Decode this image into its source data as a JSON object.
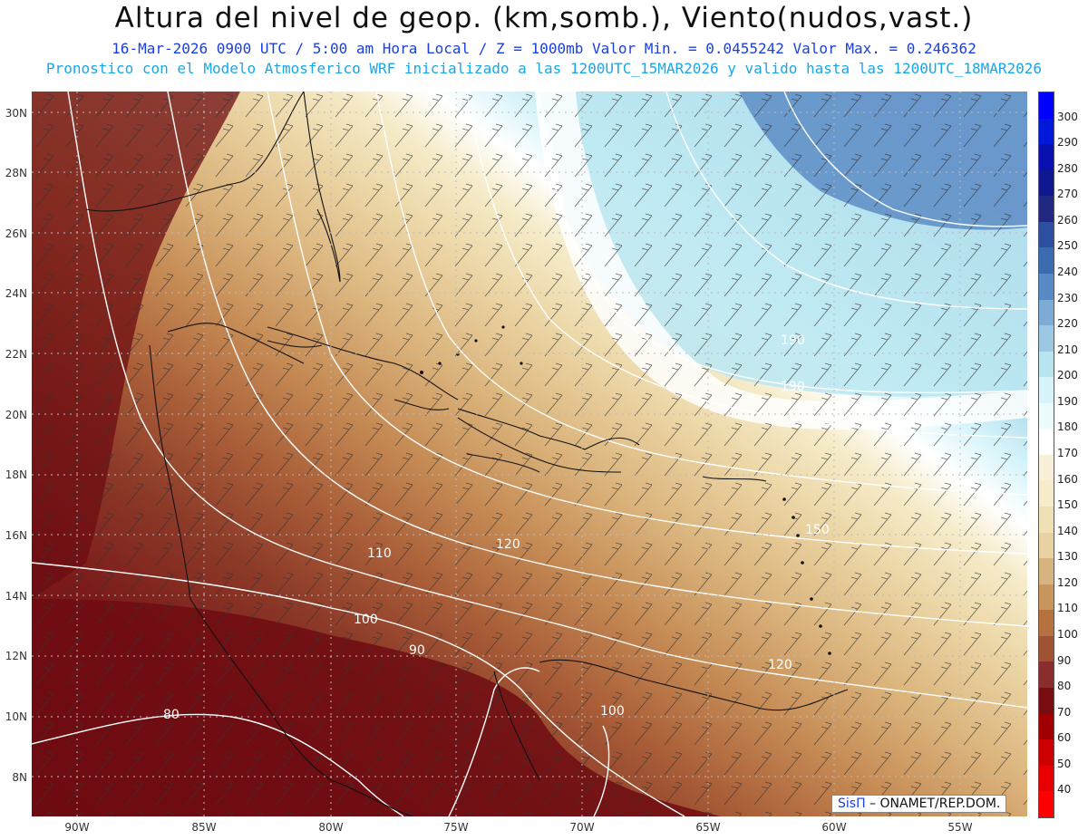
{
  "header": {
    "title": "Altura del nivel de geop. (km,somb.), Viento(nudos,vast.)",
    "subtitle1": "16-Mar-2026  0900 UTC / 5:00 am Hora Local / Z = 1000mb  Valor Min. = 0.0455242  Valor Max. = 0.246362",
    "subtitle2": "Pronostico con el Modelo Atmosferico WRF inicializado a las 1200UTC_15MAR2026 y valido hasta las  1200UTC_18MAR2026"
  },
  "map": {
    "lat_labels": [
      "30N",
      "28N",
      "26N",
      "24N",
      "22N",
      "20N",
      "18N",
      "16N",
      "14N",
      "12N",
      "10N",
      "8N"
    ],
    "lon_labels": [
      "90W",
      "85W",
      "80W",
      "75W",
      "70W",
      "65W",
      "60W",
      "55W"
    ],
    "contour_labels": [
      "80",
      "90",
      "100",
      "110",
      "120",
      "100",
      "120",
      "150",
      "190",
      "190"
    ],
    "gridline_color": "#bbbbbb",
    "land_outline_color": "#111111",
    "contour_color": "#ffffff",
    "wind_barb_color": "#333333"
  },
  "colorbar": {
    "labels": [
      "300",
      "290",
      "280",
      "270",
      "260",
      "250",
      "240",
      "230",
      "220",
      "210",
      "200",
      "190",
      "180",
      "170",
      "160",
      "150",
      "140",
      "130",
      "120",
      "110",
      "100",
      "90",
      "80",
      "70",
      "60",
      "50",
      "40"
    ],
    "colors": [
      "#0000ff",
      "#0018d8",
      "#0810b0",
      "#101890",
      "#202880",
      "#2c4fa0",
      "#3b6cb0",
      "#5a8ac6",
      "#7eaad6",
      "#9cc8e4",
      "#b8e4f0",
      "#d6f4fa",
      "#ecfbfc",
      "#ffffff",
      "#f8f0d8",
      "#f6ecca",
      "#f0e0b6",
      "#e8d2a2",
      "#d8b580",
      "#c8955e",
      "#b5723f",
      "#a05334",
      "#8a2d2d",
      "#780d10",
      "#a00000",
      "#cc0000",
      "#e80000",
      "#ff0000"
    ]
  },
  "credit": {
    "brand": "SisΠ",
    "org": " – ONAMET/REP.DOM."
  }
}
